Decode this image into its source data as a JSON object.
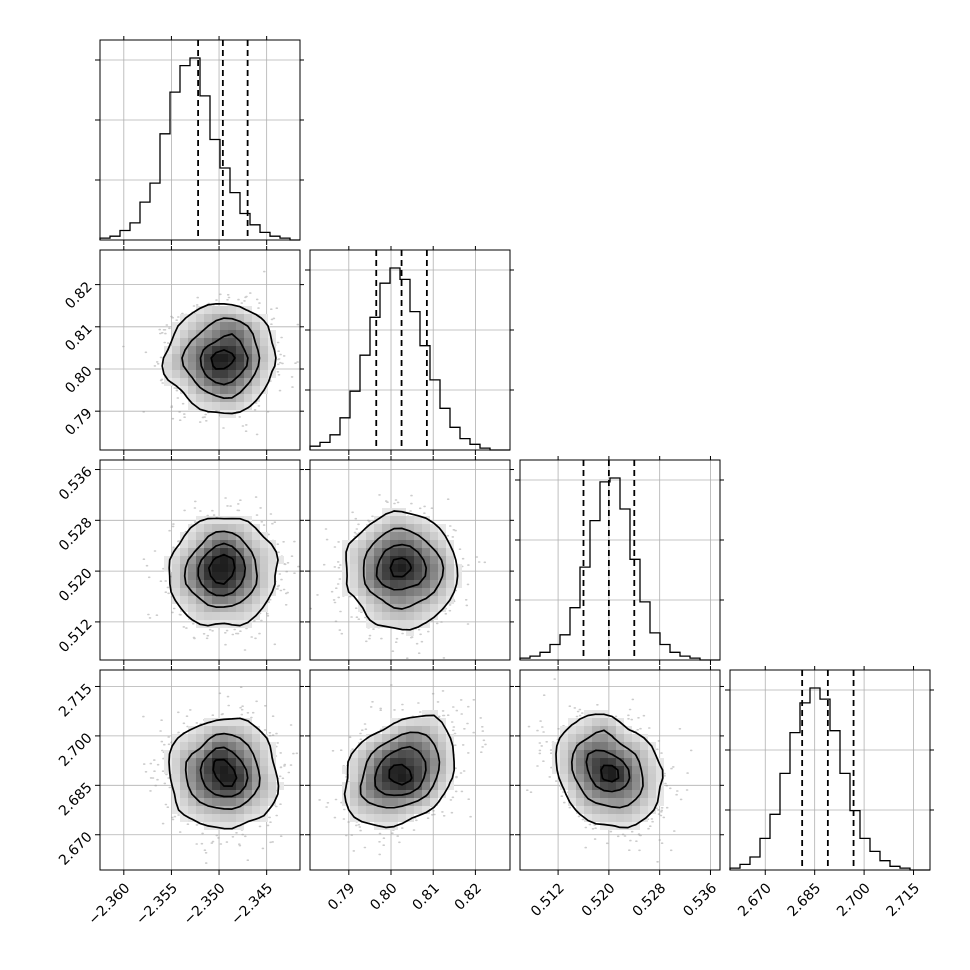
{
  "chart_data": {
    "type": "corner",
    "grid": true,
    "colors": {
      "line": "#000000",
      "grid": "#b0b0b0",
      "scatter": "#9a9a9a",
      "background": "#ffffff"
    },
    "parameters": [
      {
        "range": [
          -2.3625,
          -2.3415
        ],
        "ticks": [
          -2.36,
          -2.355,
          -2.35,
          -2.345
        ],
        "tick_labels": [
          "−2.360",
          "−2.355",
          "−2.350",
          "−2.345"
        ],
        "quantiles": [
          -2.3522,
          -2.3496,
          -2.347
        ],
        "mean": -2.3496,
        "sd": 0.0026,
        "histogram_counts": [
          1,
          2,
          5,
          9,
          20,
          30,
          56,
          78,
          92,
          96,
          76,
          53,
          38,
          25,
          14,
          8,
          4,
          2,
          1,
          0
        ]
      },
      {
        "range": [
          0.7808,
          0.8282
        ],
        "ticks": [
          0.79,
          0.8,
          0.81,
          0.82
        ],
        "tick_labels": [
          "0.79",
          "0.80",
          "0.81",
          "0.82"
        ],
        "quantiles": [
          0.7965,
          0.8025,
          0.8085
        ],
        "mean": 0.8025,
        "sd": 0.006,
        "histogram_counts": [
          2,
          4,
          8,
          17,
          31,
          50,
          70,
          88,
          96,
          90,
          73,
          55,
          37,
          22,
          12,
          6,
          3,
          1,
          0,
          0
        ]
      },
      {
        "range": [
          0.506,
          0.5375
        ],
        "ticks": [
          0.512,
          0.52,
          0.528,
          0.536
        ],
        "tick_labels": [
          "0.512",
          "0.520",
          "0.528",
          "0.536"
        ],
        "quantiles": [
          0.516,
          0.52,
          0.524
        ],
        "mean": 0.52,
        "sd": 0.004,
        "histogram_counts": [
          1,
          2,
          4,
          8,
          13,
          27,
          48,
          72,
          92,
          94,
          78,
          52,
          30,
          14,
          8,
          4,
          2,
          1,
          0,
          0
        ]
      },
      {
        "range": [
          2.6593,
          2.72
        ],
        "ticks": [
          2.67,
          2.685,
          2.7,
          2.715
        ],
        "tick_labels": [
          "2.670",
          "2.685",
          "2.700",
          "2.715"
        ],
        "quantiles": [
          2.6812,
          2.689,
          2.6968
        ],
        "mean": 2.689,
        "sd": 0.0078,
        "histogram_counts": [
          1,
          3,
          7,
          17,
          30,
          52,
          74,
          90,
          98,
          92,
          75,
          52,
          32,
          17,
          10,
          5,
          2,
          1,
          0,
          0
        ]
      }
    ],
    "correlations": [
      [
        1,
        0,
        0,
        0
      ],
      [
        0,
        1,
        0,
        0.35
      ],
      [
        0,
        0,
        1,
        -0.25
      ],
      [
        0,
        0.35,
        -0.25,
        1
      ]
    ]
  }
}
